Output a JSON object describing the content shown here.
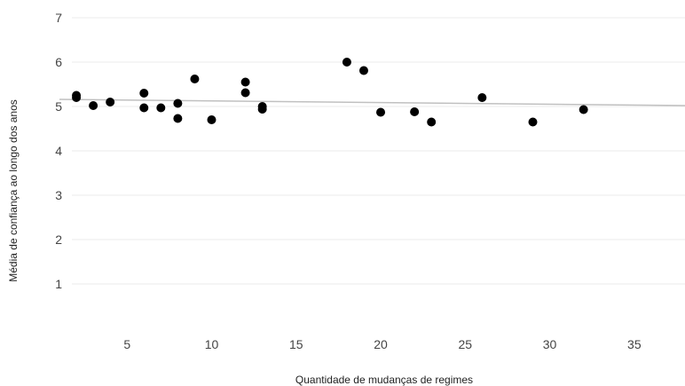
{
  "chart_data": {
    "type": "scatter",
    "xlabel": "Quantidade de mudanças de regimes",
    "ylabel": "Média de confiança ao longo dos anos",
    "xlim": [
      1,
      38
    ],
    "ylim": [
      0,
      7
    ],
    "xticks": [
      5,
      10,
      15,
      20,
      25,
      30,
      35
    ],
    "yticks": [
      1,
      2,
      3,
      4,
      5,
      6,
      7
    ],
    "grid": true,
    "legend": "none",
    "colors": {
      "points": "#000000",
      "trendline": "#c0c0c0",
      "grid": "#ebebeb"
    },
    "series": [
      {
        "x": [
          2,
          2,
          3,
          4,
          6,
          6,
          7,
          8,
          8,
          9,
          10,
          12,
          12,
          13,
          13,
          18,
          19,
          20,
          22,
          23,
          26,
          29,
          32
        ],
        "y": [
          5.25,
          5.2,
          5.02,
          5.1,
          5.3,
          4.97,
          4.97,
          5.07,
          4.73,
          5.62,
          4.7,
          5.55,
          5.31,
          5.0,
          4.94,
          6.0,
          5.81,
          4.87,
          4.88,
          4.65,
          5.2,
          4.65,
          4.93
        ]
      }
    ],
    "trendline": {
      "x": [
        1,
        38
      ],
      "y": [
        5.16,
        5.02
      ]
    }
  }
}
